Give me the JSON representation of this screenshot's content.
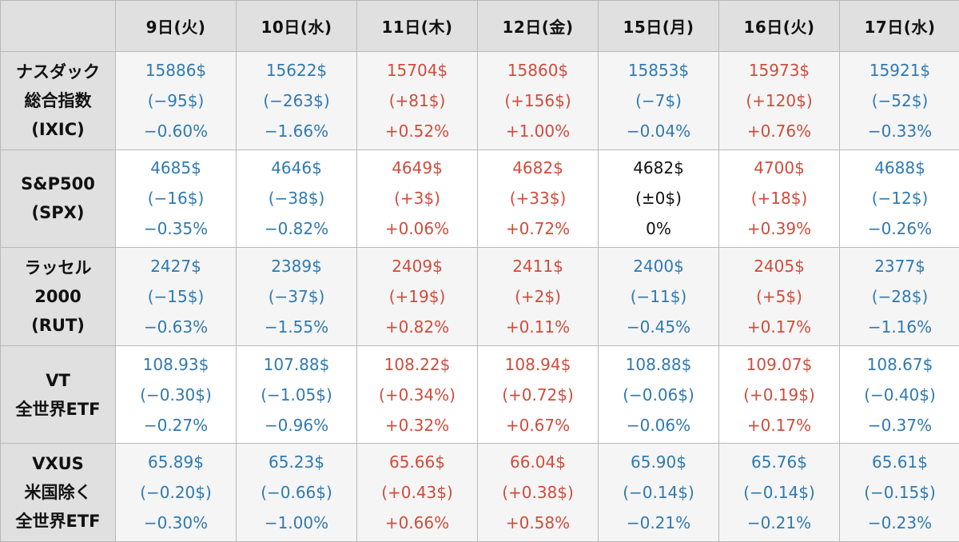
{
  "chart_data": {
    "type": "table",
    "columns": [
      "9日(火)",
      "10日(水)",
      "11日(木)",
      "12日(金)",
      "15日(月)",
      "16日(火)",
      "17日(水)"
    ],
    "rows": [
      {
        "label": [
          "ナスダック",
          "総合指数",
          "(IXIC)"
        ],
        "cells": [
          {
            "price": "15886$",
            "change": "(−95$)",
            "pct": "−0.60%",
            "dir": "down"
          },
          {
            "price": "15622$",
            "change": "(−263$)",
            "pct": "−1.66%",
            "dir": "down"
          },
          {
            "price": "15704$",
            "change": "(+81$)",
            "pct": "+0.52%",
            "dir": "up"
          },
          {
            "price": "15860$",
            "change": "(+156$)",
            "pct": "+1.00%",
            "dir": "up"
          },
          {
            "price": "15853$",
            "change": "(−7$)",
            "pct": "−0.04%",
            "dir": "down"
          },
          {
            "price": "15973$",
            "change": "(+120$)",
            "pct": "+0.76%",
            "dir": "up"
          },
          {
            "price": "15921$",
            "change": "(−52$)",
            "pct": "−0.33%",
            "dir": "down"
          }
        ]
      },
      {
        "label": [
          "S&P500",
          "(SPX)"
        ],
        "cells": [
          {
            "price": "4685$",
            "change": "(−16$)",
            "pct": "−0.35%",
            "dir": "down"
          },
          {
            "price": "4646$",
            "change": "(−38$)",
            "pct": "−0.82%",
            "dir": "down"
          },
          {
            "price": "4649$",
            "change": "(+3$)",
            "pct": "+0.06%",
            "dir": "up"
          },
          {
            "price": "4682$",
            "change": "(+33$)",
            "pct": "+0.72%",
            "dir": "up"
          },
          {
            "price": "4682$",
            "change": "(±0$)",
            "pct": "0%",
            "dir": "flat"
          },
          {
            "price": "4700$",
            "change": "(+18$)",
            "pct": "+0.39%",
            "dir": "up"
          },
          {
            "price": "4688$",
            "change": "(−12$)",
            "pct": "−0.26%",
            "dir": "down"
          }
        ]
      },
      {
        "label": [
          "ラッセル",
          "2000",
          "(RUT)"
        ],
        "cells": [
          {
            "price": "2427$",
            "change": "(−15$)",
            "pct": "−0.63%",
            "dir": "down"
          },
          {
            "price": "2389$",
            "change": "(−37$)",
            "pct": "−1.55%",
            "dir": "down"
          },
          {
            "price": "2409$",
            "change": "(+19$)",
            "pct": "+0.82%",
            "dir": "up"
          },
          {
            "price": "2411$",
            "change": "(+2$)",
            "pct": "+0.11%",
            "dir": "up"
          },
          {
            "price": "2400$",
            "change": "(−11$)",
            "pct": "−0.45%",
            "dir": "down"
          },
          {
            "price": "2405$",
            "change": "(+5$)",
            "pct": "+0.17%",
            "dir": "up"
          },
          {
            "price": "2377$",
            "change": "(−28$)",
            "pct": "−1.16%",
            "dir": "down"
          }
        ]
      },
      {
        "label": [
          "VT",
          "全世界ETF"
        ],
        "cells": [
          {
            "price": "108.93$",
            "change": "(−0.30$)",
            "pct": "−0.27%",
            "dir": "down"
          },
          {
            "price": "107.88$",
            "change": "(−1.05$)",
            "pct": "−0.96%",
            "dir": "down"
          },
          {
            "price": "108.22$",
            "change": "(+0.34%)",
            "pct": "+0.32%",
            "dir": "up"
          },
          {
            "price": "108.94$",
            "change": "(+0.72$)",
            "pct": "+0.67%",
            "dir": "up"
          },
          {
            "price": "108.88$",
            "change": "(−0.06$)",
            "pct": "−0.06%",
            "dir": "down"
          },
          {
            "price": "109.07$",
            "change": "(+0.19$)",
            "pct": "+0.17%",
            "dir": "up"
          },
          {
            "price": "108.67$",
            "change": "(−0.40$)",
            "pct": "−0.37%",
            "dir": "down"
          }
        ]
      },
      {
        "label": [
          "VXUS",
          "米国除く",
          "全世界ETF"
        ],
        "cells": [
          {
            "price": "65.89$",
            "change": "(−0.20$)",
            "pct": "−0.30%",
            "dir": "down"
          },
          {
            "price": "65.23$",
            "change": "(−0.66$)",
            "pct": "−1.00%",
            "dir": "down"
          },
          {
            "price": "65.66$",
            "change": "(+0.43$)",
            "pct": "+0.66%",
            "dir": "up"
          },
          {
            "price": "66.04$",
            "change": "(+0.38$)",
            "pct": "+0.58%",
            "dir": "up"
          },
          {
            "price": "65.90$",
            "change": "(−0.14$)",
            "pct": "−0.21%",
            "dir": "down"
          },
          {
            "price": "65.76$",
            "change": "(−0.14$)",
            "pct": "−0.21%",
            "dir": "down"
          },
          {
            "price": "65.61$",
            "change": "(−0.15$)",
            "pct": "−0.23%",
            "dir": "down"
          }
        ]
      }
    ]
  },
  "colors": {
    "down": "#2f7ab1",
    "up": "#d04c3c",
    "flat": "#111111",
    "header_bg": "#e0e0e0",
    "alt_row_bg": "#f5f5f5",
    "border": "#b9b9b9"
  }
}
